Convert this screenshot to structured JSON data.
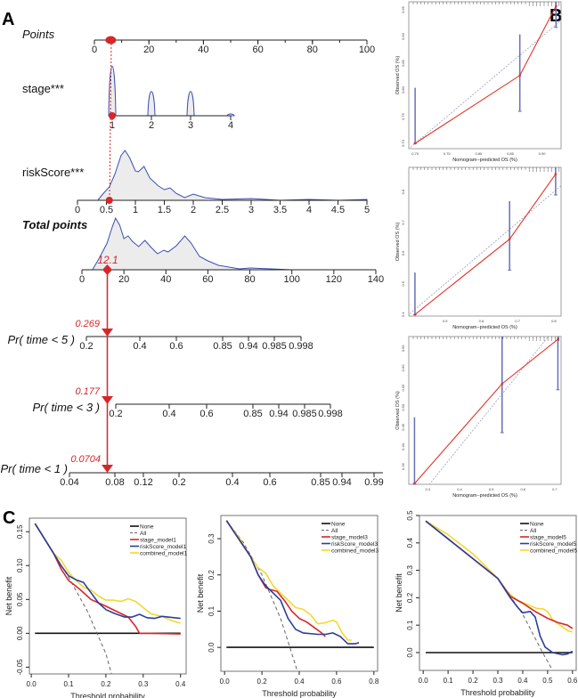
{
  "panel_letters": {
    "a": "A",
    "b": "B",
    "c": "C"
  },
  "nomogram": {
    "rows": {
      "points": "Points",
      "stage": "stage***",
      "riskScore": "riskScore***",
      "total": "Total points",
      "pr5": "Pr( time < 5 )",
      "pr3": "Pr( time < 3 )",
      "pr1": "Pr( time < 1 )"
    },
    "points_ticks": [
      "0",
      "20",
      "40",
      "60",
      "80",
      "100"
    ],
    "stage_ticks": [
      "1",
      "2",
      "3",
      "4"
    ],
    "riskScore_ticks": [
      "0",
      "0.5",
      "1",
      "1.5",
      "2",
      "2.5",
      "3",
      "3.5",
      "4",
      "4.5",
      "5"
    ],
    "total_ticks": [
      "0",
      "20",
      "40",
      "60",
      "80",
      "100",
      "120",
      "140"
    ],
    "pr5_ticks": [
      "0.2",
      "0.4",
      "0.6",
      "0.85",
      "0.94",
      "0.985",
      "0.998"
    ],
    "pr3_ticks": [
      "0.2",
      "0.4",
      "0.6",
      "0.85",
      "0.94",
      "0.985",
      "0.998"
    ],
    "pr1_ticks": [
      "0.04",
      "0.08",
      "0.12",
      "0.2",
      "0.4",
      "0.6",
      "0.85",
      "0.94",
      "0.99"
    ],
    "selected": {
      "points": 6,
      "stage": 1,
      "riskScore": 0.55,
      "total_points": "12.1",
      "pr5": "0.269",
      "pr3": "0.177",
      "pr1": "0.0704"
    },
    "colors": {
      "highlight": "#d62728",
      "density": "#3a4fb0"
    }
  },
  "chart_data": [
    {
      "type": "line",
      "panel": "B-1",
      "xlabel": "Nomogram−predicted OS (%)",
      "ylabel": "Observed OS (%)",
      "xlim": [
        0.69,
        0.93
      ],
      "ylim": [
        0.69,
        0.965
      ],
      "xticks": [
        "0.70",
        "0.75",
        "0.80",
        "0.85",
        "0.90"
      ],
      "yticks": [
        "0.70",
        "0.75",
        "0.80",
        "0.85",
        "0.90",
        "0.95"
      ],
      "points": [
        {
          "x": 0.7,
          "y": 0.7,
          "lo": 0.7,
          "hi": 0.804
        },
        {
          "x": 0.865,
          "y": 0.827,
          "lo": 0.76,
          "hi": 0.904
        },
        {
          "x": 0.922,
          "y": 0.957,
          "lo": 0.917,
          "hi": 0.97
        }
      ]
    },
    {
      "type": "line",
      "panel": "B-2",
      "xlabel": "Nomogram−predicted OS (%)",
      "ylabel": "Observed OS (%)",
      "xlim": [
        0.4,
        0.82
      ],
      "ylim": [
        0.395,
        0.88
      ],
      "xticks": [
        "0.5",
        "0.6",
        "0.7",
        "0.8"
      ],
      "yticks": [
        "0.4",
        "0.5",
        "0.6",
        "0.7",
        "0.8"
      ],
      "points": [
        {
          "x": 0.417,
          "y": 0.4,
          "lo": 0.4,
          "hi": 0.537
        },
        {
          "x": 0.678,
          "y": 0.646,
          "lo": 0.545,
          "hi": 0.77
        },
        {
          "x": 0.805,
          "y": 0.858,
          "lo": 0.79,
          "hi": 0.9
        }
      ]
    },
    {
      "type": "line",
      "panel": "B-3",
      "xlabel": "Nomogram−predicted OS (%)",
      "ylabel": "Observed OS (%)",
      "xlim": [
        0.24,
        0.72
      ],
      "ylim": [
        0.305,
        0.68
      ],
      "xticks": [
        "0.3",
        "0.4",
        "0.5",
        "0.6",
        "0.7"
      ],
      "yticks": [
        "0.35",
        "0.40",
        "0.45",
        "0.50",
        "0.55",
        "0.60",
        "0.65"
      ],
      "points": [
        {
          "x": 0.258,
          "y": 0.307,
          "lo": 0.307,
          "hi": 0.475
        },
        {
          "x": 0.534,
          "y": 0.56,
          "lo": 0.436,
          "hi": 0.7
        },
        {
          "x": 0.71,
          "y": 0.673,
          "lo": 0.545,
          "hi": 0.7
        }
      ]
    },
    {
      "type": "line",
      "panel": "C-1",
      "xlabel": "Threshold probability",
      "ylabel": "Net benefit",
      "xlim": [
        -0.005,
        0.415
      ],
      "ylim": [
        -0.06,
        0.17
      ],
      "xticks": [
        "0.0",
        "0.1",
        "0.2",
        "0.3",
        "0.4"
      ],
      "yticks": [
        "-0.05",
        "0.00",
        "0.05",
        "0.10",
        "0.15"
      ],
      "legend": "top-right",
      "series": [
        {
          "name": "None",
          "color": "#111111",
          "dash": false,
          "points": [
            [
              0.01,
              0
            ],
            [
              0.4,
              0
            ]
          ]
        },
        {
          "name": "All",
          "color": "#666666",
          "dash": true,
          "points": [
            [
              0.01,
              0.162
            ],
            [
              0.1,
              0.083
            ],
            [
              0.15,
              0.033
            ],
            [
              0.2,
              -0.03
            ],
            [
              0.215,
              -0.06
            ]
          ]
        },
        {
          "name": "stage_model1",
          "color": "#d62728",
          "dash": false,
          "points": [
            [
              0.01,
              0.162
            ],
            [
              0.06,
              0.118
            ],
            [
              0.08,
              0.095
            ],
            [
              0.1,
              0.078
            ],
            [
              0.13,
              0.065
            ],
            [
              0.16,
              0.05
            ],
            [
              0.2,
              0.04
            ],
            [
              0.23,
              0.032
            ],
            [
              0.26,
              0.024
            ],
            [
              0.28,
              0.01
            ],
            [
              0.29,
              0.0
            ],
            [
              0.32,
              0.0
            ],
            [
              0.4,
              -0.001
            ]
          ]
        },
        {
          "name": "riskScore_model1",
          "color": "#2c3e99",
          "dash": false,
          "points": [
            [
              0.01,
              0.162
            ],
            [
              0.06,
              0.118
            ],
            [
              0.08,
              0.1
            ],
            [
              0.1,
              0.085
            ],
            [
              0.12,
              0.079
            ],
            [
              0.14,
              0.075
            ],
            [
              0.16,
              0.06
            ],
            [
              0.18,
              0.045
            ],
            [
              0.2,
              0.035
            ],
            [
              0.22,
              0.03
            ],
            [
              0.25,
              0.024
            ],
            [
              0.27,
              0.024
            ],
            [
              0.29,
              0.028
            ],
            [
              0.31,
              0.023
            ],
            [
              0.33,
              0.022
            ],
            [
              0.35,
              0.025
            ],
            [
              0.4,
              0.022
            ]
          ]
        },
        {
          "name": "combined_model1",
          "color": "#f2d930",
          "dash": false,
          "points": [
            [
              0.01,
              0.162
            ],
            [
              0.06,
              0.118
            ],
            [
              0.08,
              0.108
            ],
            [
              0.1,
              0.09
            ],
            [
              0.12,
              0.078
            ],
            [
              0.14,
              0.068
            ],
            [
              0.16,
              0.064
            ],
            [
              0.18,
              0.055
            ],
            [
              0.2,
              0.049
            ],
            [
              0.22,
              0.049
            ],
            [
              0.24,
              0.047
            ],
            [
              0.26,
              0.051
            ],
            [
              0.28,
              0.047
            ],
            [
              0.3,
              0.038
            ],
            [
              0.32,
              0.029
            ],
            [
              0.35,
              0.025
            ],
            [
              0.38,
              0.018
            ],
            [
              0.4,
              0.015
            ]
          ]
        }
      ]
    },
    {
      "type": "line",
      "panel": "C-2",
      "xlabel": "Threshold probability",
      "ylabel": "Net benefit",
      "xlim": [
        -0.02,
        0.82
      ],
      "ylim": [
        -0.066,
        0.364
      ],
      "xticks": [
        "0.0",
        "0.2",
        "0.4",
        "0.6",
        "0.8"
      ],
      "yticks": [
        "0.0",
        "0.1",
        "0.2",
        "0.3"
      ],
      "legend": "top-right",
      "series": [
        {
          "name": "None",
          "color": "#111111",
          "dash": false,
          "points": [
            [
              0.01,
              0
            ],
            [
              0.8,
              0
            ]
          ]
        },
        {
          "name": "All",
          "color": "#666666",
          "dash": true,
          "points": [
            [
              0.01,
              0.35
            ],
            [
              0.1,
              0.29
            ],
            [
              0.2,
              0.2
            ],
            [
              0.3,
              0.08
            ],
            [
              0.35,
              0.0
            ],
            [
              0.39,
              -0.066
            ]
          ]
        },
        {
          "name": "stage_model3",
          "color": "#d62728",
          "dash": false,
          "points": [
            [
              0.01,
              0.35
            ],
            [
              0.14,
              0.25
            ],
            [
              0.18,
              0.2
            ],
            [
              0.22,
              0.165
            ],
            [
              0.24,
              0.16
            ],
            [
              0.28,
              0.155
            ],
            [
              0.32,
              0.13
            ],
            [
              0.36,
              0.1
            ],
            [
              0.4,
              0.08
            ],
            [
              0.44,
              0.07
            ],
            [
              0.48,
              0.055
            ],
            [
              0.52,
              0.04
            ],
            [
              0.54,
              0.03
            ]
          ]
        },
        {
          "name": "riskScore_model3",
          "color": "#2c3e99",
          "dash": false,
          "points": [
            [
              0.01,
              0.35
            ],
            [
              0.14,
              0.25
            ],
            [
              0.18,
              0.2
            ],
            [
              0.22,
              0.17
            ],
            [
              0.26,
              0.15
            ],
            [
              0.3,
              0.13
            ],
            [
              0.34,
              0.08
            ],
            [
              0.38,
              0.05
            ],
            [
              0.42,
              0.04
            ],
            [
              0.5,
              0.036
            ],
            [
              0.54,
              0.036
            ],
            [
              0.58,
              0.04
            ],
            [
              0.62,
              0.03
            ],
            [
              0.66,
              0.01
            ],
            [
              0.7,
              0.01
            ],
            [
              0.72,
              0.013
            ]
          ]
        },
        {
          "name": "combined_model3",
          "color": "#f2d930",
          "dash": false,
          "points": [
            [
              0.01,
              0.35
            ],
            [
              0.08,
              0.3
            ],
            [
              0.14,
              0.25
            ],
            [
              0.18,
              0.22
            ],
            [
              0.22,
              0.205
            ],
            [
              0.26,
              0.17
            ],
            [
              0.3,
              0.15
            ],
            [
              0.34,
              0.13
            ],
            [
              0.38,
              0.11
            ],
            [
              0.42,
              0.105
            ],
            [
              0.46,
              0.09
            ],
            [
              0.5,
              0.065
            ],
            [
              0.54,
              0.068
            ],
            [
              0.58,
              0.075
            ],
            [
              0.6,
              0.07
            ],
            [
              0.63,
              0.04
            ],
            [
              0.66,
              0.02
            ],
            [
              0.68,
              0.02
            ]
          ]
        }
      ]
    },
    {
      "type": "line",
      "panel": "C-3",
      "xlabel": "Threshold probability",
      "ylabel": "Net benefit",
      "xlim": [
        -0.015,
        0.615
      ],
      "ylim": [
        -0.065,
        0.5
      ],
      "xticks": [
        "0.0",
        "0.1",
        "0.2",
        "0.3",
        "0.4",
        "0.5",
        "0.6"
      ],
      "yticks": [
        "0.0",
        "0.1",
        "0.2",
        "0.3",
        "0.4",
        "0.5"
      ],
      "legend": "top-right",
      "series": [
        {
          "name": "None",
          "color": "#111111",
          "dash": false,
          "points": [
            [
              0.01,
              0
            ],
            [
              0.6,
              0
            ]
          ]
        },
        {
          "name": "All",
          "color": "#666666",
          "dash": true,
          "points": [
            [
              0.01,
              0.48
            ],
            [
              0.1,
              0.43
            ],
            [
              0.2,
              0.36
            ],
            [
              0.3,
              0.27
            ],
            [
              0.4,
              0.14
            ],
            [
              0.48,
              0.0
            ],
            [
              0.52,
              -0.065
            ]
          ]
        },
        {
          "name": "stage_model5",
          "color": "#d62728",
          "dash": false,
          "points": [
            [
              0.01,
              0.48
            ],
            [
              0.3,
              0.27
            ],
            [
              0.35,
              0.205
            ],
            [
              0.4,
              0.18
            ],
            [
              0.45,
              0.15
            ],
            [
              0.5,
              0.125
            ],
            [
              0.54,
              0.11
            ],
            [
              0.58,
              0.1
            ],
            [
              0.6,
              0.088
            ]
          ]
        },
        {
          "name": "riskScore_model5",
          "color": "#2c3e99",
          "dash": false,
          "points": [
            [
              0.01,
              0.48
            ],
            [
              0.3,
              0.27
            ],
            [
              0.35,
              0.2
            ],
            [
              0.38,
              0.165
            ],
            [
              0.4,
              0.145
            ],
            [
              0.43,
              0.15
            ],
            [
              0.45,
              0.13
            ],
            [
              0.47,
              0.06
            ],
            [
              0.49,
              0.02
            ],
            [
              0.52,
              0.0
            ],
            [
              0.56,
              -0.008
            ],
            [
              0.58,
              -0.005
            ],
            [
              0.6,
              0.005
            ]
          ]
        },
        {
          "name": "combined_model5",
          "color": "#f2d930",
          "dash": false,
          "points": [
            [
              0.01,
              0.48
            ],
            [
              0.1,
              0.43
            ],
            [
              0.2,
              0.36
            ],
            [
              0.3,
              0.27
            ],
            [
              0.34,
              0.22
            ],
            [
              0.38,
              0.19
            ],
            [
              0.42,
              0.175
            ],
            [
              0.46,
              0.16
            ],
            [
              0.48,
              0.16
            ],
            [
              0.5,
              0.15
            ],
            [
              0.52,
              0.12
            ],
            [
              0.55,
              0.1
            ],
            [
              0.58,
              0.08
            ],
            [
              0.6,
              0.075
            ]
          ]
        }
      ]
    }
  ]
}
